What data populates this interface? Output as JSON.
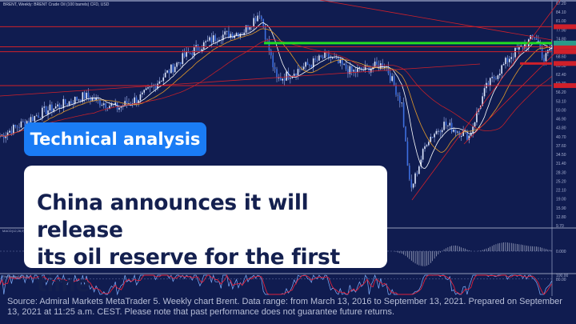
{
  "chart_header": "BRENT, Weekly: BRENT Crude Oil (100 barrels) CFD, USD",
  "overlay": {
    "tag": "Technical analysis",
    "headline_line1": "China announces it will release",
    "headline_line2": "its oil reserve for the first time"
  },
  "footer": "Source: Admiral Markets MetaTrader 5. Weekly chart Brent. Data range: from March 13, 2016 to September 13, 2021. Prepared on September 13, 2021 at 11:25 a.m. CEST. Please note that past performance does not guarantee future returns.",
  "colors": {
    "background": "#101c50",
    "candle": "#dfe8ff",
    "ma_fast": "#ffffff",
    "ma_slow": "#e39a2a",
    "ma_long": "#c0202a",
    "level_green": "#22dd22",
    "level_red": "#d0202a",
    "tag_bg": "#1a7cf5",
    "card_text": "#14204f"
  },
  "chart_data": {
    "type": "candlestick",
    "timeframe": "weekly",
    "x_range": [
      "2016-03-13",
      "2021-09-13"
    ],
    "ylim": [
      9.7,
      87.2
    ],
    "y_ticks": [
      87.2,
      84.1,
      81.0,
      77.9,
      74.8,
      71.7,
      68.6,
      65.5,
      62.4,
      59.3,
      56.2,
      53.1,
      50.0,
      46.9,
      43.8,
      40.7,
      37.6,
      34.5,
      31.4,
      28.3,
      25.2,
      22.1,
      19.0,
      15.9,
      12.8,
      9.7
    ],
    "close_anchors": [
      [
        "2016-03",
        40.9
      ],
      [
        "2016-08",
        49.3
      ],
      [
        "2017-01",
        54.9
      ],
      [
        "2017-05",
        50.7
      ],
      [
        "2017-08",
        54.9
      ],
      [
        "2018-01",
        68.8
      ],
      [
        "2018-05",
        75.8
      ],
      [
        "2018-08",
        77.2
      ],
      [
        "2018-10",
        84.1
      ],
      [
        "2018-12",
        60.4
      ],
      [
        "2019-02",
        63.2
      ],
      [
        "2019-06",
        68.8
      ],
      [
        "2019-09",
        63.2
      ],
      [
        "2020-01",
        66.0
      ],
      [
        "2020-03",
        52.0
      ],
      [
        "2020-04",
        21.4
      ],
      [
        "2020-06",
        39.5
      ],
      [
        "2020-08",
        45.1
      ],
      [
        "2020-11",
        40.9
      ],
      [
        "2021-01",
        57.6
      ],
      [
        "2021-04",
        68.8
      ],
      [
        "2021-07",
        75.8
      ],
      [
        "2021-08",
        67.4
      ],
      [
        "2021-09",
        73.0
      ]
    ],
    "levels": {
      "green": 73.3,
      "red": [
        79.0,
        72.0,
        70.3,
        66.2,
        58.5
      ]
    },
    "indicators": [
      "MACD(12,26,9)",
      "Stochastic(10,3,3)"
    ],
    "macd_axis": [
      0.0
    ],
    "stoch_axis": [
      100.0,
      80.0
    ]
  }
}
